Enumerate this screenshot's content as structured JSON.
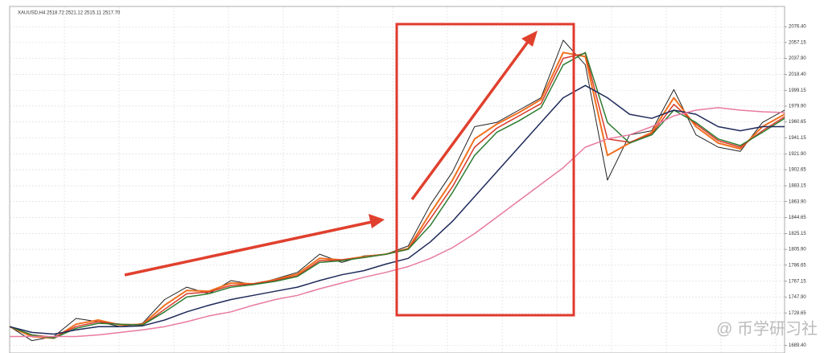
{
  "chart_data": {
    "type": "line",
    "title": "XAUUSD,H4  2518.72 2521.12 2515.11 2517.70",
    "watermark": "@ 币学研习社",
    "categories": [
      null,
      null,
      null,
      null,
      null,
      null,
      null,
      null,
      null,
      null,
      null,
      null,
      null,
      null,
      null,
      null,
      null,
      null,
      null,
      null,
      null,
      null,
      null,
      null,
      null,
      null,
      null,
      null,
      null,
      null,
      null,
      null,
      null,
      null,
      null,
      null
    ],
    "series": [
      {
        "color": "#222222",
        "width": 1,
        "values": [
          1712,
          1695,
          1700,
          1722,
          1718,
          1712,
          1716,
          1745,
          1760,
          1752,
          1768,
          1763,
          1770,
          1778,
          1800,
          1790,
          1798,
          1800,
          1810,
          1860,
          1900,
          1955,
          1960,
          1975,
          1990,
          2060,
          2030,
          1890,
          1945,
          1950,
          2000,
          1945,
          1930,
          1925,
          1960,
          1975
        ]
      },
      {
        "color": "#f07020",
        "width": 2,
        "values": [
          1712,
          1700,
          1698,
          1715,
          1720,
          1714,
          1715,
          1738,
          1756,
          1755,
          1765,
          1764,
          1769,
          1776,
          1795,
          1793,
          1797,
          1800,
          1807,
          1850,
          1890,
          1940,
          1958,
          1972,
          1988,
          2045,
          2040,
          1920,
          1935,
          1948,
          1990,
          1955,
          1935,
          1928,
          1955,
          1970
        ]
      },
      {
        "color": "#d83a2a",
        "width": 1.5,
        "values": [
          1712,
          1702,
          1699,
          1712,
          1718,
          1715,
          1714,
          1733,
          1752,
          1754,
          1762,
          1764,
          1768,
          1774,
          1792,
          1793,
          1796,
          1800,
          1806,
          1843,
          1882,
          1930,
          1953,
          1968,
          1983,
          2038,
          2044,
          1940,
          1936,
          1946,
          1982,
          1958,
          1938,
          1930,
          1950,
          1967
        ]
      },
      {
        "color": "#2e7d32",
        "width": 1.5,
        "values": [
          1712,
          1702,
          1698,
          1710,
          1716,
          1715,
          1714,
          1730,
          1748,
          1752,
          1760,
          1763,
          1767,
          1773,
          1790,
          1792,
          1796,
          1800,
          1806,
          1835,
          1875,
          1920,
          1948,
          1962,
          1978,
          2030,
          2045,
          1960,
          1935,
          1945,
          1975,
          1960,
          1940,
          1932,
          1948,
          1965
        ]
      },
      {
        "color": "#1f2a5a",
        "width": 1.5,
        "values": [
          1712,
          1705,
          1703,
          1708,
          1712,
          1712,
          1713,
          1720,
          1730,
          1738,
          1745,
          1750,
          1755,
          1760,
          1768,
          1775,
          1780,
          1788,
          1795,
          1815,
          1840,
          1870,
          1900,
          1930,
          1960,
          1990,
          2005,
          1990,
          1970,
          1965,
          1975,
          1970,
          1955,
          1950,
          1955,
          1955
        ]
      },
      {
        "color": "#e87aa0",
        "width": 1.5,
        "values": [
          1700,
          1700,
          1700,
          1700,
          1702,
          1705,
          1708,
          1712,
          1718,
          1725,
          1730,
          1738,
          1745,
          1750,
          1758,
          1765,
          1772,
          1778,
          1785,
          1795,
          1808,
          1825,
          1845,
          1865,
          1885,
          1905,
          1930,
          1940,
          1945,
          1955,
          1968,
          1975,
          1978,
          1975,
          1973,
          1972
        ]
      }
    ],
    "ylim": [
      1680,
      2100
    ],
    "yticks": [
      {
        "value": 2076.4,
        "label": "2076.40"
      },
      {
        "value": 2057.15,
        "label": "2057.15"
      },
      {
        "value": 2037.9,
        "label": "2037.90"
      },
      {
        "value": 2018.4,
        "label": "2018.40"
      },
      {
        "value": 1999.15,
        "label": "1999.15"
      },
      {
        "value": 1979.9,
        "label": "1979.90"
      },
      {
        "value": 1960.65,
        "label": "1960.65"
      },
      {
        "value": 1941.15,
        "label": "1941.15"
      },
      {
        "value": 1921.9,
        "label": "1921.90"
      },
      {
        "value": 1902.65,
        "label": "1902.65"
      },
      {
        "value": 1883.15,
        "label": "1883.15"
      },
      {
        "value": 1863.9,
        "label": "1863.90"
      },
      {
        "value": 1844.65,
        "label": "1844.65"
      },
      {
        "value": 1825.15,
        "label": "1825.15"
      },
      {
        "value": 1805.9,
        "label": "1805.90"
      },
      {
        "value": 1786.65,
        "label": "1786.65"
      },
      {
        "value": 1767.15,
        "label": "1767.15"
      },
      {
        "value": 1747.9,
        "label": "1747.90"
      },
      {
        "value": 1728.65,
        "label": "1728.65"
      },
      {
        "value": 1689.4,
        "label": "1689.40"
      }
    ],
    "grid": true
  }
}
